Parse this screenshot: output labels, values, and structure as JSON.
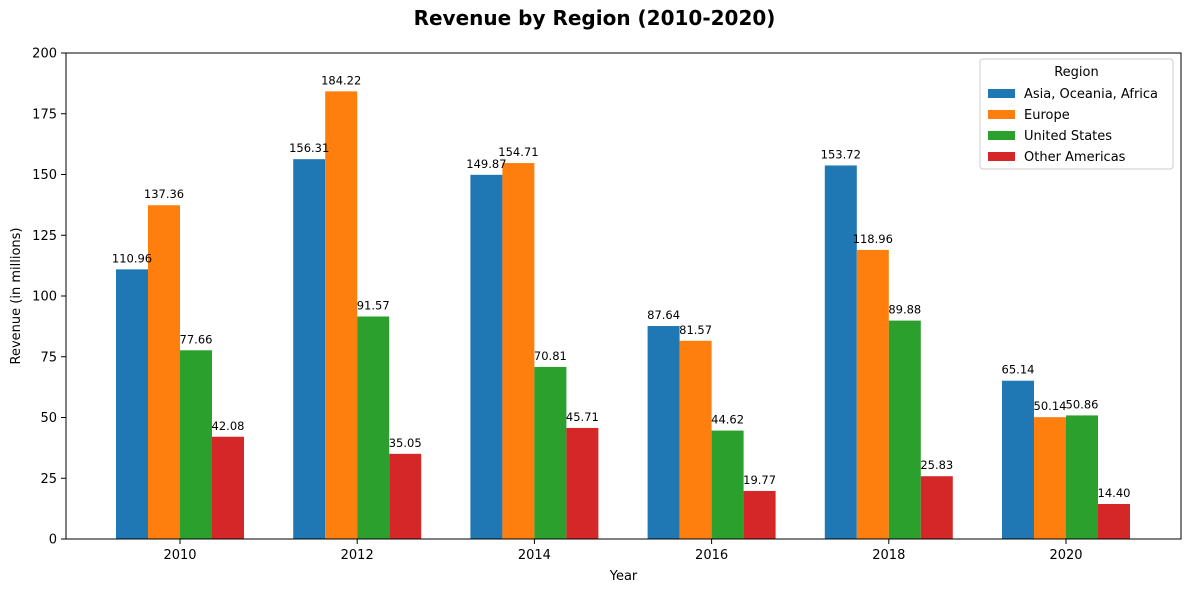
{
  "chart_data": {
    "type": "bar",
    "title": "Revenue by Region (2010-2020)",
    "xlabel": "Year",
    "ylabel": "Revenue (in millions)",
    "categories": [
      "2010",
      "2012",
      "2014",
      "2016",
      "2018",
      "2020"
    ],
    "ylim": [
      0,
      200
    ],
    "yticks": [
      0,
      25,
      50,
      75,
      100,
      125,
      150,
      175,
      200
    ],
    "grid": false,
    "legend": {
      "title": "Region",
      "placement": "top-right"
    },
    "series": [
      {
        "name": "Asia, Oceania, Africa",
        "color": "#1f77b4",
        "values": [
          110.96,
          156.31,
          149.87,
          87.64,
          153.72,
          65.14
        ]
      },
      {
        "name": "Europe",
        "color": "#ff7f0e",
        "values": [
          137.36,
          184.22,
          154.71,
          81.57,
          118.96,
          50.14
        ]
      },
      {
        "name": "United States",
        "color": "#2ca02c",
        "values": [
          77.66,
          91.57,
          70.81,
          44.62,
          89.88,
          50.86
        ]
      },
      {
        "name": "Other Americas",
        "color": "#d62728",
        "values": [
          42.08,
          35.05,
          45.71,
          19.77,
          25.83,
          14.4
        ]
      }
    ],
    "value_labels": true
  }
}
